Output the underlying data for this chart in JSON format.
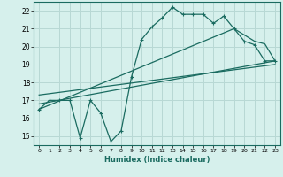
{
  "xlabel": "Humidex (Indice chaleur)",
  "bg_color": "#d6f0ec",
  "grid_color": "#b8d8d4",
  "line_color": "#1a6b60",
  "xlim": [
    -0.5,
    23.5
  ],
  "ylim": [
    14.5,
    22.5
  ],
  "yticks": [
    15,
    16,
    17,
    18,
    19,
    20,
    21,
    22
  ],
  "xticks": [
    0,
    1,
    2,
    3,
    4,
    5,
    6,
    7,
    8,
    9,
    10,
    11,
    12,
    13,
    14,
    15,
    16,
    17,
    18,
    19,
    20,
    21,
    22,
    23
  ],
  "line1_x": [
    0,
    1,
    2,
    3,
    4,
    5,
    6,
    7,
    8,
    9,
    10,
    11,
    12,
    13,
    14,
    15,
    16,
    17,
    18,
    19,
    20,
    21,
    22,
    23
  ],
  "line1_y": [
    16.5,
    17.0,
    17.0,
    17.0,
    14.9,
    17.0,
    16.3,
    14.7,
    15.3,
    18.3,
    20.4,
    21.1,
    21.6,
    22.2,
    21.8,
    21.8,
    21.8,
    21.3,
    21.7,
    21.0,
    20.3,
    20.1,
    19.2,
    19.2
  ],
  "line2_x": [
    0,
    19,
    21,
    22,
    23
  ],
  "line2_y": [
    16.5,
    21.0,
    20.3,
    20.15,
    19.2
  ],
  "line3_x": [
    0,
    23
  ],
  "line3_y": [
    16.8,
    19.2
  ],
  "line4_x": [
    0,
    23
  ],
  "line4_y": [
    17.3,
    19.0
  ]
}
